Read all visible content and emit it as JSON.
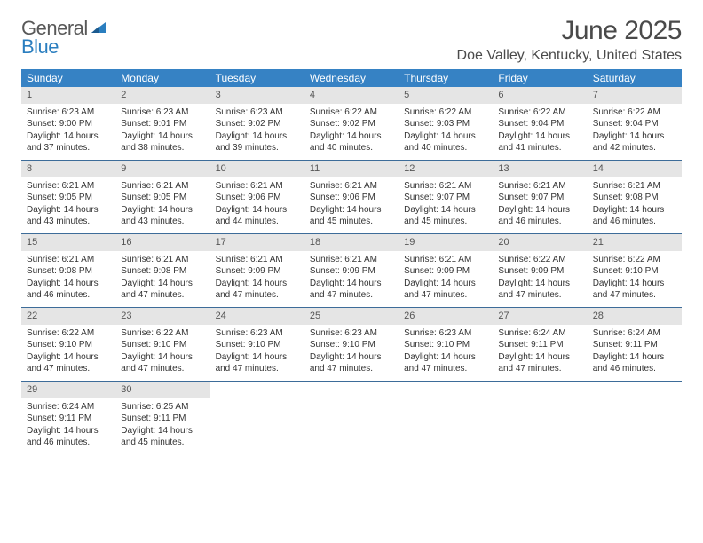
{
  "brand": {
    "line1": "General",
    "line2": "Blue"
  },
  "title": "June 2025",
  "location": "Doe Valley, Kentucky, United States",
  "colors": {
    "header_bg": "#3682c4",
    "header_text": "#ffffff",
    "daynum_bg": "#e5e5e5",
    "daynum_text": "#555555",
    "week_divider": "#3d6c99",
    "body_text": "#333333",
    "title_text": "#4a4a4a"
  },
  "weekdays": [
    "Sunday",
    "Monday",
    "Tuesday",
    "Wednesday",
    "Thursday",
    "Friday",
    "Saturday"
  ],
  "typography": {
    "title_fontsize": 30,
    "location_fontsize": 16,
    "weekday_fontsize": 12,
    "daynum_fontsize": 11,
    "body_fontsize": 10
  },
  "weeks": [
    [
      {
        "day": "1",
        "sunrise": "Sunrise: 6:23 AM",
        "sunset": "Sunset: 9:00 PM",
        "daylight": "Daylight: 14 hours and 37 minutes."
      },
      {
        "day": "2",
        "sunrise": "Sunrise: 6:23 AM",
        "sunset": "Sunset: 9:01 PM",
        "daylight": "Daylight: 14 hours and 38 minutes."
      },
      {
        "day": "3",
        "sunrise": "Sunrise: 6:23 AM",
        "sunset": "Sunset: 9:02 PM",
        "daylight": "Daylight: 14 hours and 39 minutes."
      },
      {
        "day": "4",
        "sunrise": "Sunrise: 6:22 AM",
        "sunset": "Sunset: 9:02 PM",
        "daylight": "Daylight: 14 hours and 40 minutes."
      },
      {
        "day": "5",
        "sunrise": "Sunrise: 6:22 AM",
        "sunset": "Sunset: 9:03 PM",
        "daylight": "Daylight: 14 hours and 40 minutes."
      },
      {
        "day": "6",
        "sunrise": "Sunrise: 6:22 AM",
        "sunset": "Sunset: 9:04 PM",
        "daylight": "Daylight: 14 hours and 41 minutes."
      },
      {
        "day": "7",
        "sunrise": "Sunrise: 6:22 AM",
        "sunset": "Sunset: 9:04 PM",
        "daylight": "Daylight: 14 hours and 42 minutes."
      }
    ],
    [
      {
        "day": "8",
        "sunrise": "Sunrise: 6:21 AM",
        "sunset": "Sunset: 9:05 PM",
        "daylight": "Daylight: 14 hours and 43 minutes."
      },
      {
        "day": "9",
        "sunrise": "Sunrise: 6:21 AM",
        "sunset": "Sunset: 9:05 PM",
        "daylight": "Daylight: 14 hours and 43 minutes."
      },
      {
        "day": "10",
        "sunrise": "Sunrise: 6:21 AM",
        "sunset": "Sunset: 9:06 PM",
        "daylight": "Daylight: 14 hours and 44 minutes."
      },
      {
        "day": "11",
        "sunrise": "Sunrise: 6:21 AM",
        "sunset": "Sunset: 9:06 PM",
        "daylight": "Daylight: 14 hours and 45 minutes."
      },
      {
        "day": "12",
        "sunrise": "Sunrise: 6:21 AM",
        "sunset": "Sunset: 9:07 PM",
        "daylight": "Daylight: 14 hours and 45 minutes."
      },
      {
        "day": "13",
        "sunrise": "Sunrise: 6:21 AM",
        "sunset": "Sunset: 9:07 PM",
        "daylight": "Daylight: 14 hours and 46 minutes."
      },
      {
        "day": "14",
        "sunrise": "Sunrise: 6:21 AM",
        "sunset": "Sunset: 9:08 PM",
        "daylight": "Daylight: 14 hours and 46 minutes."
      }
    ],
    [
      {
        "day": "15",
        "sunrise": "Sunrise: 6:21 AM",
        "sunset": "Sunset: 9:08 PM",
        "daylight": "Daylight: 14 hours and 46 minutes."
      },
      {
        "day": "16",
        "sunrise": "Sunrise: 6:21 AM",
        "sunset": "Sunset: 9:08 PM",
        "daylight": "Daylight: 14 hours and 47 minutes."
      },
      {
        "day": "17",
        "sunrise": "Sunrise: 6:21 AM",
        "sunset": "Sunset: 9:09 PM",
        "daylight": "Daylight: 14 hours and 47 minutes."
      },
      {
        "day": "18",
        "sunrise": "Sunrise: 6:21 AM",
        "sunset": "Sunset: 9:09 PM",
        "daylight": "Daylight: 14 hours and 47 minutes."
      },
      {
        "day": "19",
        "sunrise": "Sunrise: 6:21 AM",
        "sunset": "Sunset: 9:09 PM",
        "daylight": "Daylight: 14 hours and 47 minutes."
      },
      {
        "day": "20",
        "sunrise": "Sunrise: 6:22 AM",
        "sunset": "Sunset: 9:09 PM",
        "daylight": "Daylight: 14 hours and 47 minutes."
      },
      {
        "day": "21",
        "sunrise": "Sunrise: 6:22 AM",
        "sunset": "Sunset: 9:10 PM",
        "daylight": "Daylight: 14 hours and 47 minutes."
      }
    ],
    [
      {
        "day": "22",
        "sunrise": "Sunrise: 6:22 AM",
        "sunset": "Sunset: 9:10 PM",
        "daylight": "Daylight: 14 hours and 47 minutes."
      },
      {
        "day": "23",
        "sunrise": "Sunrise: 6:22 AM",
        "sunset": "Sunset: 9:10 PM",
        "daylight": "Daylight: 14 hours and 47 minutes."
      },
      {
        "day": "24",
        "sunrise": "Sunrise: 6:23 AM",
        "sunset": "Sunset: 9:10 PM",
        "daylight": "Daylight: 14 hours and 47 minutes."
      },
      {
        "day": "25",
        "sunrise": "Sunrise: 6:23 AM",
        "sunset": "Sunset: 9:10 PM",
        "daylight": "Daylight: 14 hours and 47 minutes."
      },
      {
        "day": "26",
        "sunrise": "Sunrise: 6:23 AM",
        "sunset": "Sunset: 9:10 PM",
        "daylight": "Daylight: 14 hours and 47 minutes."
      },
      {
        "day": "27",
        "sunrise": "Sunrise: 6:24 AM",
        "sunset": "Sunset: 9:11 PM",
        "daylight": "Daylight: 14 hours and 47 minutes."
      },
      {
        "day": "28",
        "sunrise": "Sunrise: 6:24 AM",
        "sunset": "Sunset: 9:11 PM",
        "daylight": "Daylight: 14 hours and 46 minutes."
      }
    ],
    [
      {
        "day": "29",
        "sunrise": "Sunrise: 6:24 AM",
        "sunset": "Sunset: 9:11 PM",
        "daylight": "Daylight: 14 hours and 46 minutes."
      },
      {
        "day": "30",
        "sunrise": "Sunrise: 6:25 AM",
        "sunset": "Sunset: 9:11 PM",
        "daylight": "Daylight: 14 hours and 45 minutes."
      },
      null,
      null,
      null,
      null,
      null
    ]
  ]
}
